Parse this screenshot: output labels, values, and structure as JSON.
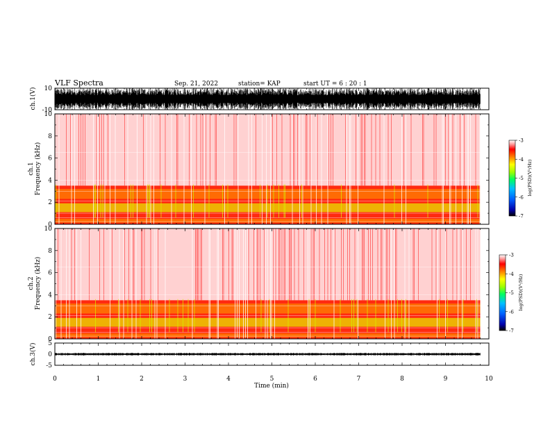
{
  "header": {
    "title": "VLF Spectra",
    "date": "Sep. 21, 2022",
    "station": "station= KAP",
    "start": "start  UT =   6 : 20 : 1"
  },
  "chart_data": [
    {
      "type": "line",
      "panel": "waveform-ch1",
      "ylabel": "ch.1(V)",
      "yticks": [
        "10",
        "-10"
      ],
      "ylim": [
        -10,
        10
      ],
      "x_range_min": [
        0,
        9.8
      ],
      "amplitude_v": 10
    },
    {
      "type": "heatmap",
      "panel": "spectrogram-ch1",
      "ylabel_top": "ch.1",
      "ylabel": "Frequency (kHz)",
      "yticks": [
        "0",
        "2",
        "4",
        "6",
        "8",
        "10"
      ],
      "ylim": [
        0,
        10
      ],
      "x_range_min": [
        0,
        9.8
      ],
      "colorbar": {
        "label": "log(PSD)(V²/Hz)",
        "ticks": [
          "-3",
          "-4",
          "-5",
          "-6",
          "-7"
        ],
        "range": [
          -7,
          -3
        ]
      }
    },
    {
      "type": "heatmap",
      "panel": "spectrogram-ch2",
      "ylabel_top": "ch.2",
      "ylabel": "Frequency (kHz)",
      "yticks": [
        "0",
        "2",
        "4",
        "6",
        "8",
        "10"
      ],
      "ylim": [
        0,
        10
      ],
      "x_range_min": [
        0,
        9.8
      ],
      "colorbar": {
        "label": "log(PSD)(V²/Hz)",
        "ticks": [
          "-3",
          "-4",
          "-5",
          "-6",
          "-7"
        ],
        "range": [
          -7,
          -3
        ]
      }
    },
    {
      "type": "line",
      "panel": "waveform-ch3",
      "ylabel": "ch.3(V)",
      "yticks": [
        "5",
        "0",
        "-5"
      ],
      "ylim": [
        -5,
        5
      ],
      "x_range_min": [
        0,
        9.8
      ],
      "amplitude_v": 0.6
    }
  ],
  "xaxis": {
    "label": "Time (min)",
    "ticks": [
      "0",
      "1",
      "2",
      "3",
      "4",
      "5",
      "6",
      "7",
      "8",
      "9",
      "10"
    ],
    "xlim": [
      0,
      10
    ]
  }
}
